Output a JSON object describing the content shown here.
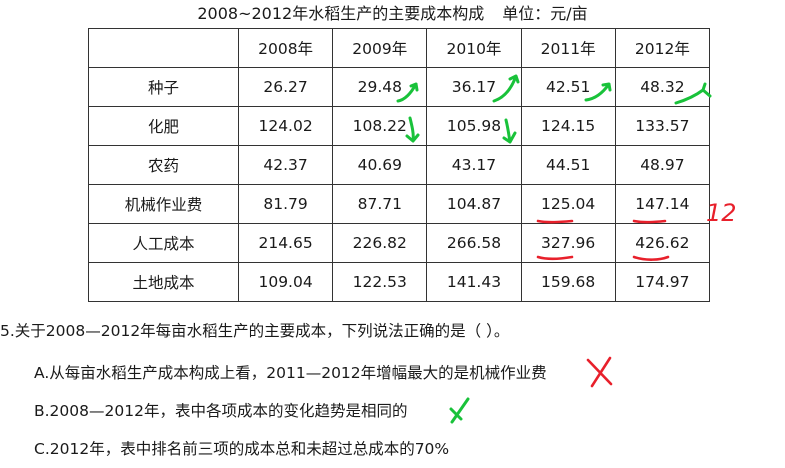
{
  "title": {
    "main": "2008~2012年水稻生产的主要成本构成",
    "unit": "单位：元/亩"
  },
  "table": {
    "header": [
      "",
      "2008年",
      "2009年",
      "2010年",
      "2011年",
      "2012年"
    ],
    "rows": [
      {
        "name": "种子",
        "values": [
          "26.27",
          "29.48",
          "36.17",
          "42.51",
          "48.32"
        ]
      },
      {
        "name": "化肥",
        "values": [
          "124.02",
          "108.22",
          "105.98",
          "124.15",
          "133.57"
        ]
      },
      {
        "name": "农药",
        "values": [
          "42.37",
          "40.69",
          "43.17",
          "44.51",
          "48.97"
        ]
      },
      {
        "name": "机械作业费",
        "values": [
          "81.79",
          "87.71",
          "104.87",
          "125.04",
          "147.14"
        ]
      },
      {
        "name": "人工成本",
        "values": [
          "214.65",
          "226.82",
          "266.58",
          "327.96",
          "426.62"
        ]
      },
      {
        "name": "土地成本",
        "values": [
          "109.04",
          "122.53",
          "141.43",
          "159.68",
          "174.97"
        ]
      }
    ]
  },
  "question": {
    "stem": "5.关于2008—2012年每亩水稻生产的主要成本，下列说法正确的是（  ）。",
    "options": {
      "a": "A.从每亩水稻生产成本构成上看，2011—2012年增幅最大的是机械作业费",
      "b": "B.2008—2012年，表中各项成本的变化趋势是相同的",
      "c": "C.2012年，表中排名前三项的成本总和未超过总成本的70%"
    }
  },
  "annotations": {
    "colors": {
      "green": "#19c23a",
      "red": "#e8202b"
    },
    "handwritten_note": "12"
  }
}
